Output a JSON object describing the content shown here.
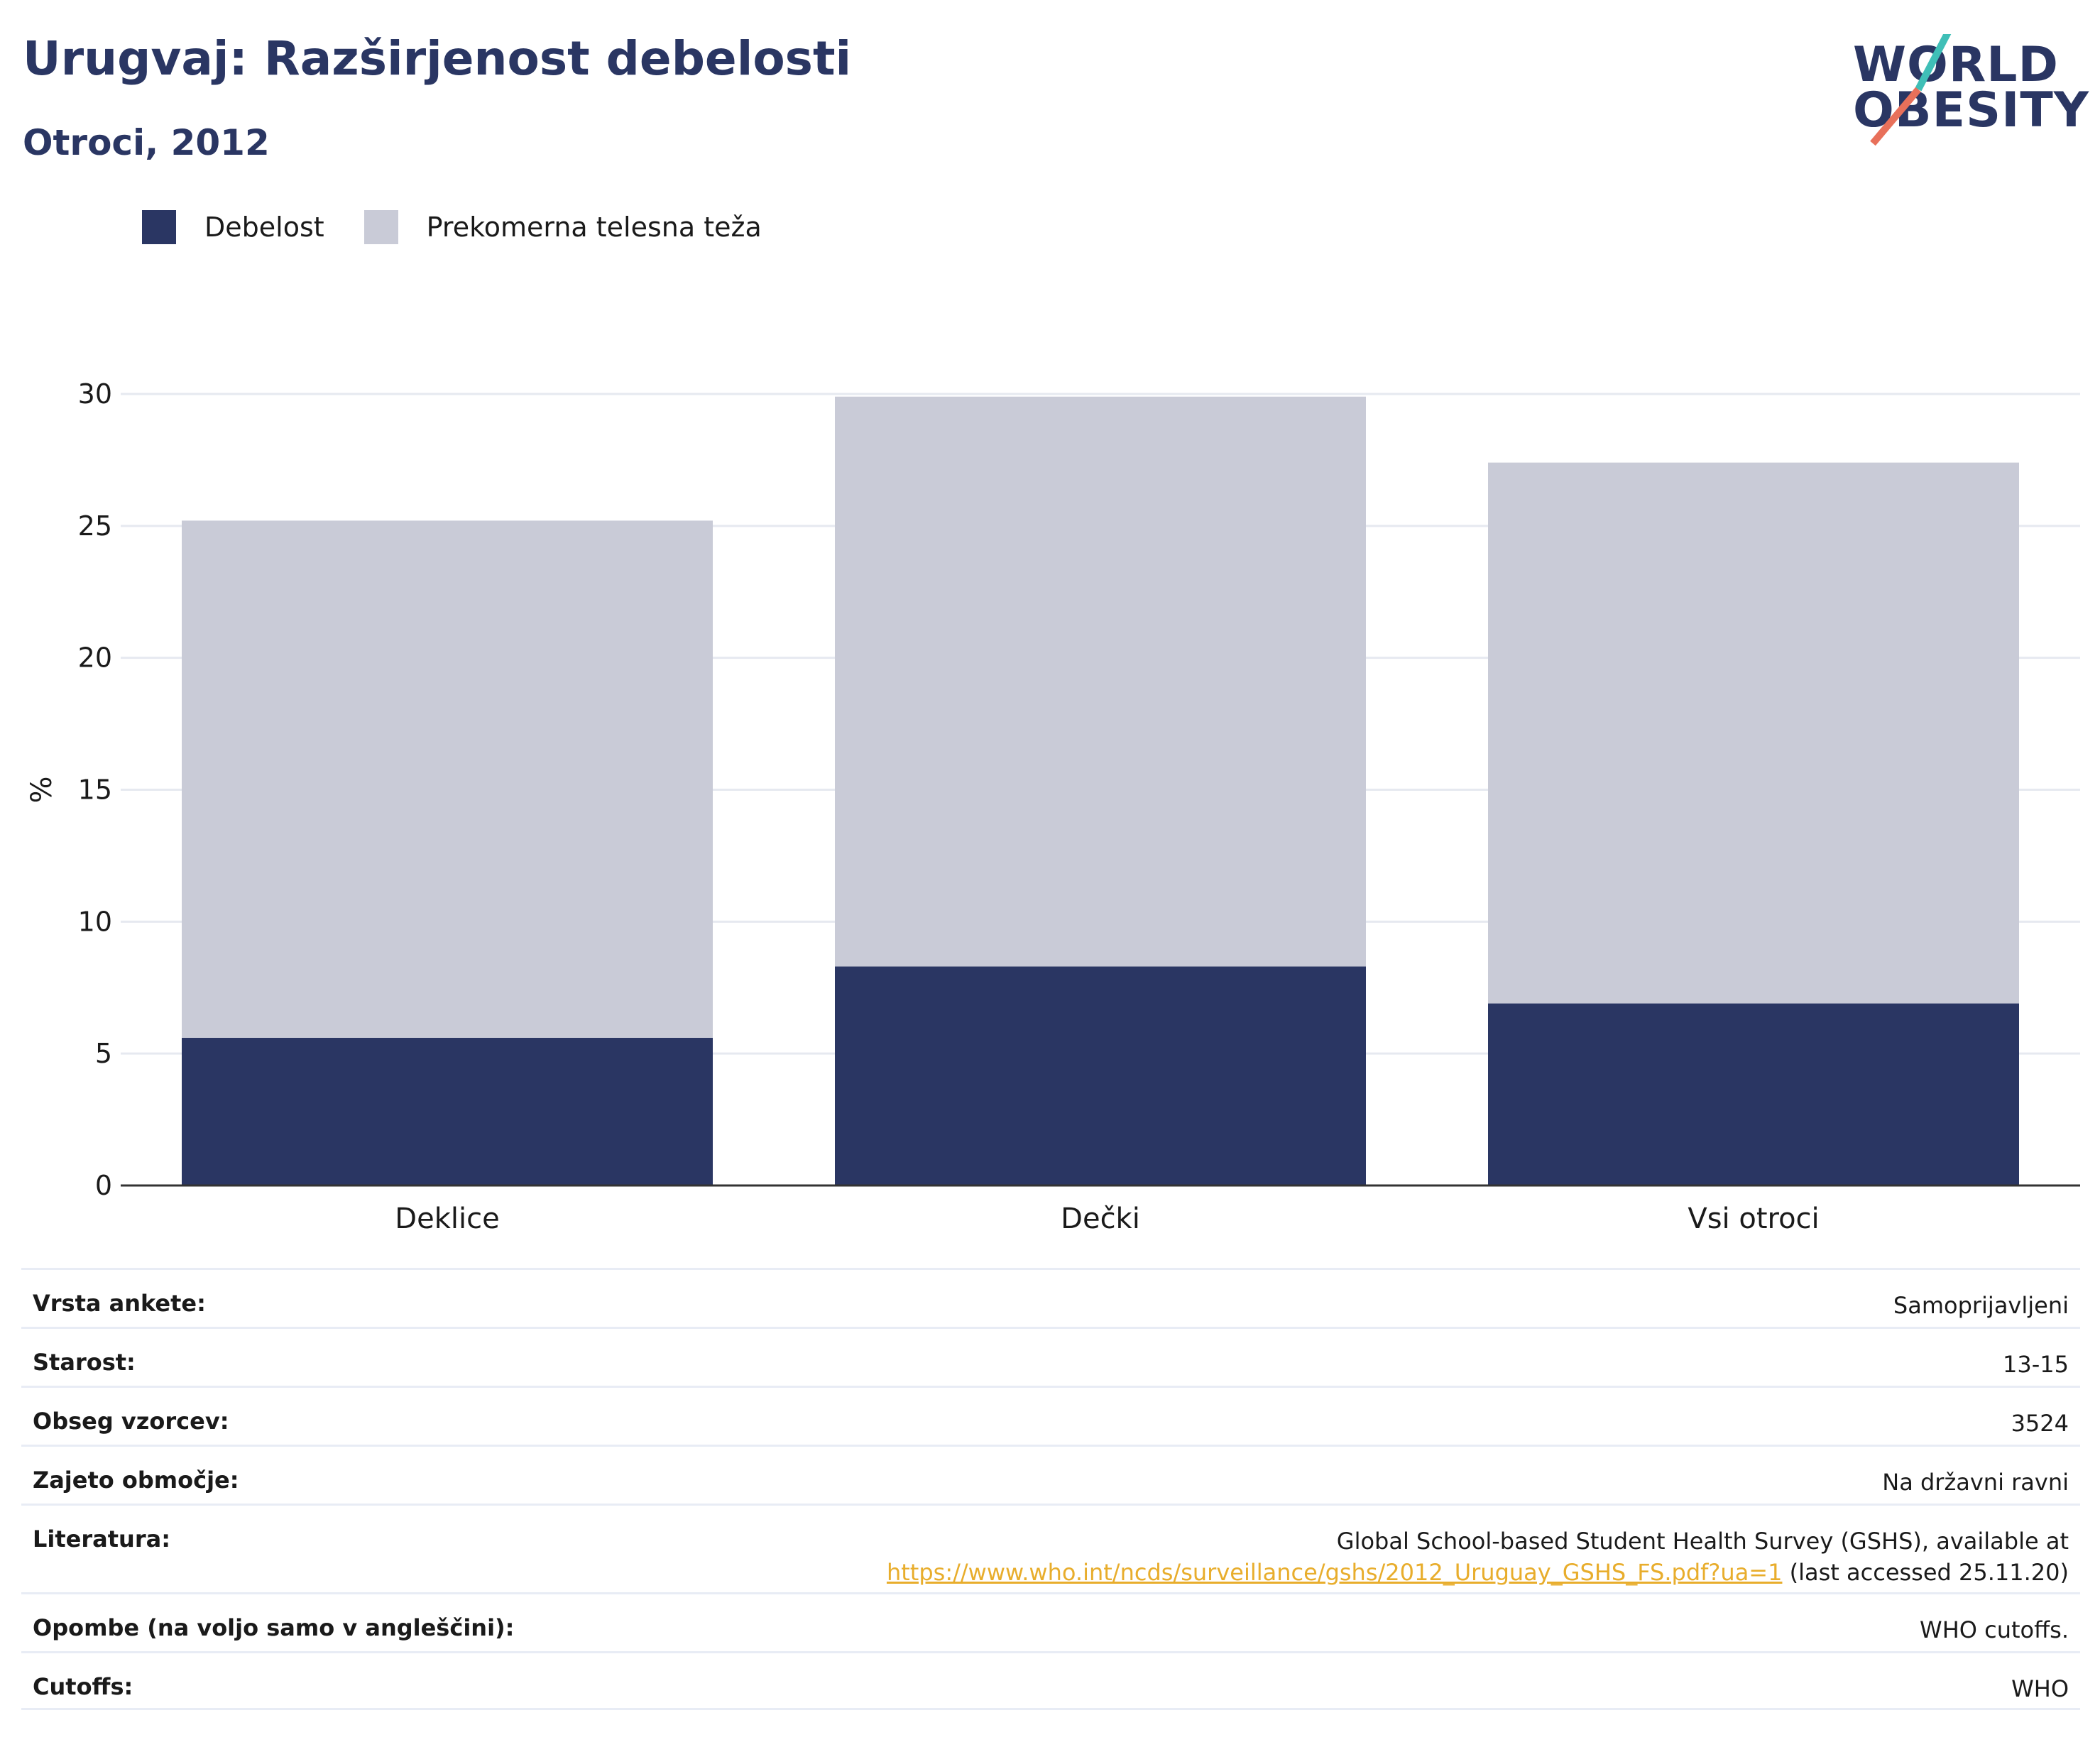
{
  "header": {
    "title": "Urugvaj: Razširjenost debelosti",
    "subtitle": "Otroci, 2012"
  },
  "logo": {
    "line1": "WORLD",
    "line2": "OBESITY",
    "slash_colors": [
      "#3fbfb7",
      "#e8705a"
    ]
  },
  "legend": [
    {
      "label": "Debelost",
      "color": "#2a3663"
    },
    {
      "label": "Prekomerna telesna teža",
      "color": "#c9cbd7"
    }
  ],
  "chart_data": {
    "type": "bar",
    "stacked": true,
    "categories": [
      "Deklice",
      "Dečki",
      "Vsi otroci"
    ],
    "series": [
      {
        "name": "Debelost",
        "values": [
          5.6,
          8.3,
          6.9
        ],
        "color": "#2a3663"
      },
      {
        "name": "Prekomerna telesna teža",
        "values": [
          19.6,
          21.6,
          20.5
        ],
        "color": "#c9cbd7"
      }
    ],
    "ylabel": "%",
    "ylim": [
      0,
      30
    ],
    "yticks": [
      0,
      5,
      10,
      15,
      20,
      25,
      30
    ],
    "grid": true,
    "legend_position": "top-left"
  },
  "info": {
    "rows": [
      {
        "label": "Vrsta ankete:",
        "value": "Samoprijavljeni"
      },
      {
        "label": "Starost:",
        "value": "13-15"
      },
      {
        "label": "Obseg vzorcev:",
        "value": "3524"
      },
      {
        "label": "Zajeto območje:",
        "value": "Na državni ravni"
      }
    ],
    "literature": {
      "label": "Literatura:",
      "text1": "Global School-based Student Health Survey (GSHS), available at",
      "link": "https://www.who.int/ncds/surveillance/gshs/2012_Uruguay_GSHS_FS.pdf?ua=1",
      "text2": " (last accessed 25.11.20)"
    },
    "rows_after": [
      {
        "label": "Opombe (na voljo samo v angleščini):",
        "value": "WHO cutoffs."
      },
      {
        "label": "Cutoffs:",
        "value": "WHO"
      }
    ]
  }
}
